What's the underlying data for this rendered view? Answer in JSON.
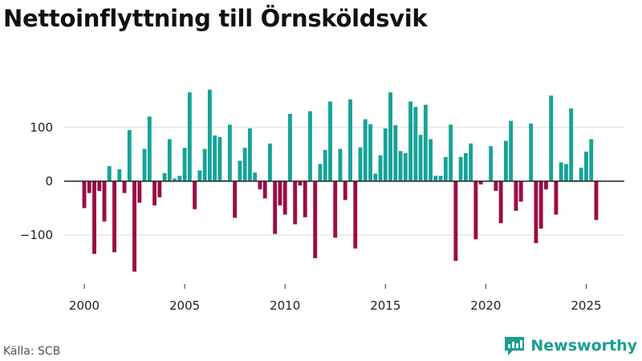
{
  "chart_data": {
    "type": "bar",
    "title": "Nettoinflyttning till Örnsköldsvik",
    "xlabel": "",
    "ylabel": "",
    "ylim": [
      -185,
      195
    ],
    "xlim": [
      1999.0,
      2026.9
    ],
    "y_ticks": [
      100,
      0,
      -100
    ],
    "y_tick_labels": [
      "100",
      "0",
      "−100"
    ],
    "x_ticks": [
      2000,
      2005,
      2010,
      2015,
      2020,
      2025
    ],
    "x_tick_labels": [
      "2000",
      "2005",
      "2010",
      "2015",
      "2020",
      "2025"
    ],
    "x_start": 2000.0,
    "x_step": 0.25,
    "grid": true,
    "positive_color": "#17a398",
    "negative_color": "#9b0d45",
    "values": [
      -50,
      -22,
      -135,
      -18,
      -75,
      28,
      -132,
      22,
      -22,
      95,
      -168,
      -40,
      60,
      120,
      -45,
      -30,
      15,
      78,
      5,
      10,
      62,
      165,
      -52,
      20,
      60,
      170,
      85,
      82,
      2,
      105,
      -68,
      38,
      62,
      98,
      16,
      -15,
      -32,
      70,
      -98,
      -45,
      -62,
      125,
      -80,
      -8,
      -67,
      130,
      -143,
      32,
      58,
      148,
      -105,
      60,
      -35,
      152,
      -125,
      63,
      115,
      106,
      14,
      48,
      98,
      165,
      104,
      56,
      52,
      148,
      138,
      86,
      142,
      78,
      10,
      10,
      45,
      105,
      -148,
      45,
      52,
      70,
      -108,
      -6,
      0,
      65,
      -18,
      -78,
      75,
      112,
      -55,
      -38,
      0,
      107,
      -115,
      -88,
      -15,
      159,
      -62,
      35,
      32,
      135,
      2,
      25,
      55,
      78,
      -72
    ]
  },
  "source": "Källa: SCB",
  "brand": {
    "name": "Newsworthy",
    "icon": "newsworthy-logo-icon"
  }
}
